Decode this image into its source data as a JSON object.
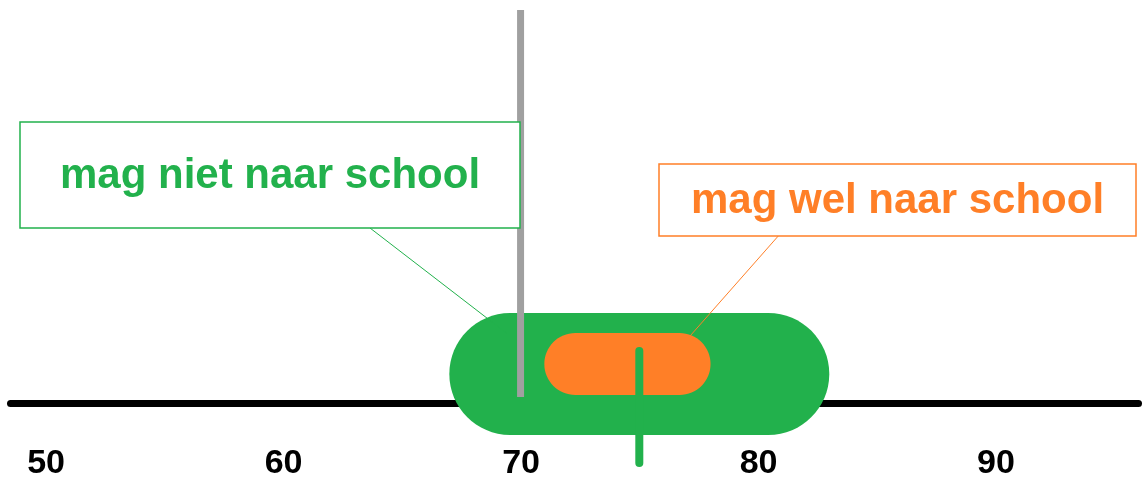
{
  "chart_data": {
    "type": "bar",
    "orientation": "horizontal",
    "categories": [
      null
    ],
    "series": [
      {
        "name": "mag niet naar school",
        "color": "#22b14c",
        "values": [
          16
        ],
        "base": [
          67
        ]
      },
      {
        "name": "mag wel naar school",
        "color": "#ff7f27",
        "values": [
          7
        ],
        "base": [
          71
        ]
      }
    ],
    "xlim": [
      48.5,
      96
    ],
    "xticks": [
      50,
      60,
      70,
      80,
      90
    ],
    "grid": false,
    "ref_lines": [
      {
        "axis": "x",
        "value": 70,
        "color": "#a0a0a0"
      },
      {
        "axis": "x",
        "value": 75,
        "color": "#22b14c"
      }
    ]
  }
}
